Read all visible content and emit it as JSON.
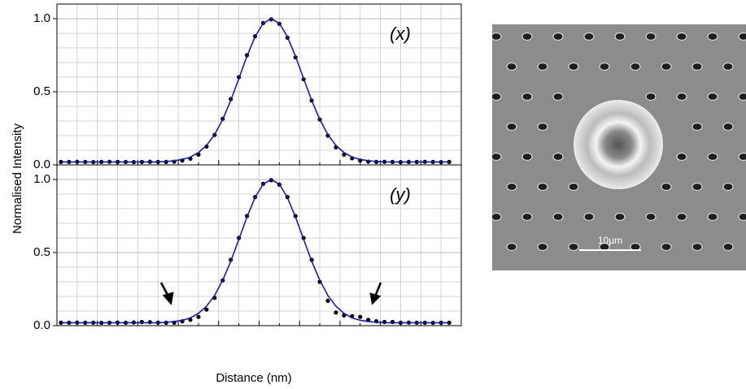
{
  "chart_data": [
    {
      "type": "line",
      "title": "(x)",
      "ylabel": "Normalised Intensity",
      "xlim": [
        0,
        100
      ],
      "ylim": [
        0,
        1.1
      ],
      "yticks": [
        {
          "value": 0,
          "label": "0.0"
        },
        {
          "value": 0.5,
          "label": "0.5"
        },
        {
          "value": 1,
          "label": "1.0"
        }
      ],
      "grid": true,
      "x": [
        1,
        3,
        5,
        7,
        9,
        11,
        13,
        15,
        17,
        19,
        21,
        23,
        25,
        27,
        29,
        31,
        33,
        35,
        37,
        39,
        41,
        43,
        45,
        47,
        49,
        51,
        53,
        55,
        57,
        59,
        61,
        63,
        65,
        67,
        69,
        71,
        73,
        75,
        77,
        79,
        81,
        83,
        85,
        87,
        89,
        91,
        93,
        95,
        97
      ],
      "series": [
        {
          "color": "#000000",
          "mode": "markers",
          "values": [
            0.02,
            0.02,
            0.021,
            0.02,
            0.019,
            0.02,
            0.021,
            0.02,
            0.02,
            0.019,
            0.02,
            0.021,
            0.02,
            0.02,
            0.022,
            0.03,
            0.042,
            0.07,
            0.125,
            0.205,
            0.315,
            0.45,
            0.6,
            0.75,
            0.88,
            0.97,
            0.995,
            0.965,
            0.87,
            0.735,
            0.585,
            0.44,
            0.31,
            0.2,
            0.12,
            0.07,
            0.045,
            0.03,
            0.022,
            0.02,
            0.021,
            0.02,
            0.019,
            0.02,
            0.02,
            0.021,
            0.02,
            0.019,
            0.02
          ]
        },
        {
          "color": "#1a1aa8",
          "mode": "line",
          "values": [
            0.02,
            0.02,
            0.02,
            0.02,
            0.02,
            0.02,
            0.02,
            0.02,
            0.02,
            0.02,
            0.02,
            0.02,
            0.02,
            0.023,
            0.028,
            0.037,
            0.053,
            0.084,
            0.133,
            0.207,
            0.311,
            0.441,
            0.591,
            0.743,
            0.877,
            0.968,
            1.0,
            0.968,
            0.877,
            0.743,
            0.591,
            0.441,
            0.311,
            0.207,
            0.133,
            0.084,
            0.053,
            0.037,
            0.028,
            0.023,
            0.02,
            0.02,
            0.02,
            0.02,
            0.02,
            0.02,
            0.02,
            0.02,
            0.02
          ]
        }
      ]
    },
    {
      "type": "line",
      "title": "(y)",
      "xlabel": "Distance (nm)",
      "xlim": [
        0,
        100
      ],
      "ylim": [
        0,
        1.1
      ],
      "yticks": [
        {
          "value": 0,
          "label": "0.0"
        },
        {
          "value": 0.5,
          "label": "0.5"
        },
        {
          "value": 1,
          "label": "1.0"
        }
      ],
      "grid": true,
      "x": [
        1,
        3,
        5,
        7,
        9,
        11,
        13,
        15,
        17,
        19,
        21,
        23,
        25,
        27,
        29,
        31,
        33,
        35,
        37,
        39,
        41,
        43,
        45,
        47,
        49,
        51,
        53,
        55,
        57,
        59,
        61,
        63,
        65,
        67,
        69,
        71,
        73,
        75,
        77,
        79,
        81,
        83,
        85,
        87,
        89,
        91,
        93,
        95,
        97
      ],
      "series": [
        {
          "color": "#000000",
          "mode": "markers",
          "values": [
            0.02,
            0.02,
            0.021,
            0.02,
            0.02,
            0.019,
            0.02,
            0.021,
            0.02,
            0.022,
            0.025,
            0.024,
            0.021,
            0.02,
            0.02,
            0.03,
            0.04,
            0.06,
            0.11,
            0.19,
            0.31,
            0.45,
            0.6,
            0.75,
            0.88,
            0.97,
            0.995,
            0.965,
            0.88,
            0.75,
            0.6,
            0.45,
            0.3,
            0.17,
            0.09,
            0.07,
            0.065,
            0.06,
            0.04,
            0.03,
            0.025,
            0.025,
            0.02,
            0.021,
            0.02,
            0.02,
            0.019,
            0.02,
            0.02
          ]
        },
        {
          "color": "#1a1aa8",
          "mode": "line",
          "values": [
            0.02,
            0.02,
            0.02,
            0.02,
            0.02,
            0.02,
            0.02,
            0.02,
            0.02,
            0.02,
            0.02,
            0.02,
            0.02,
            0.023,
            0.028,
            0.037,
            0.053,
            0.084,
            0.133,
            0.207,
            0.311,
            0.441,
            0.591,
            0.743,
            0.877,
            0.968,
            1.0,
            0.968,
            0.877,
            0.743,
            0.591,
            0.441,
            0.311,
            0.207,
            0.133,
            0.084,
            0.053,
            0.037,
            0.028,
            0.023,
            0.02,
            0.02,
            0.02,
            0.02,
            0.02,
            0.02,
            0.02,
            0.02,
            0.02
          ]
        }
      ]
    }
  ],
  "image": {
    "scale_label": "10µm"
  }
}
